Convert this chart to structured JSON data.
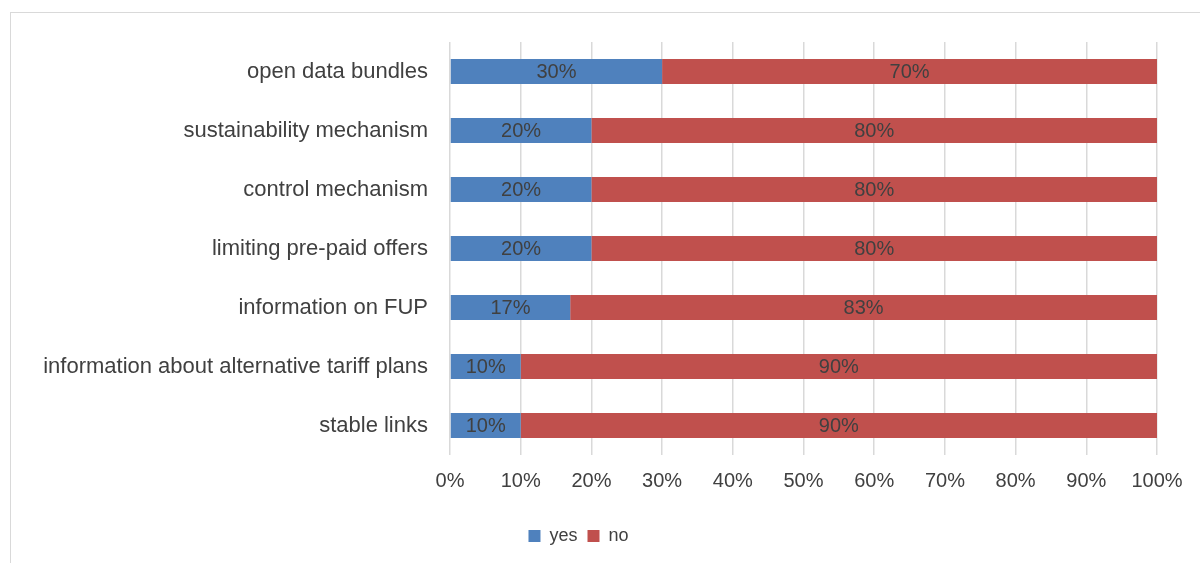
{
  "chart_data": {
    "type": "bar",
    "orientation": "horizontal",
    "stacked": true,
    "categories": [
      "open data bundles",
      "sustainability mechanism",
      "control mechanism",
      "limiting pre-paid offers",
      "information on FUP",
      "information about alternative tariff plans",
      "stable links"
    ],
    "series": [
      {
        "name": "yes",
        "color": "#4f81bd",
        "values": [
          30,
          20,
          20,
          20,
          17,
          10,
          10
        ],
        "value_labels": [
          "30%",
          "20%",
          "20%",
          "20%",
          "17%",
          "10%",
          "10%"
        ]
      },
      {
        "name": "no",
        "color": "#c0504d",
        "values": [
          70,
          80,
          80,
          80,
          83,
          90,
          90
        ],
        "value_labels": [
          "70%",
          "80%",
          "80%",
          "80%",
          "83%",
          "90%",
          "90%"
        ]
      }
    ],
    "xlim": [
      0,
      100
    ],
    "xticks": [
      {
        "value": 0,
        "label": "0%"
      },
      {
        "value": 10,
        "label": "10%"
      },
      {
        "value": 20,
        "label": "20%"
      },
      {
        "value": 30,
        "label": "30%"
      },
      {
        "value": 40,
        "label": "40%"
      },
      {
        "value": 50,
        "label": "50%"
      },
      {
        "value": 60,
        "label": "60%"
      },
      {
        "value": 70,
        "label": "70%"
      },
      {
        "value": 80,
        "label": "80%"
      },
      {
        "value": 90,
        "label": "90%"
      },
      {
        "value": 100,
        "label": "100%"
      }
    ],
    "grid": "x",
    "legend": "bottom"
  }
}
